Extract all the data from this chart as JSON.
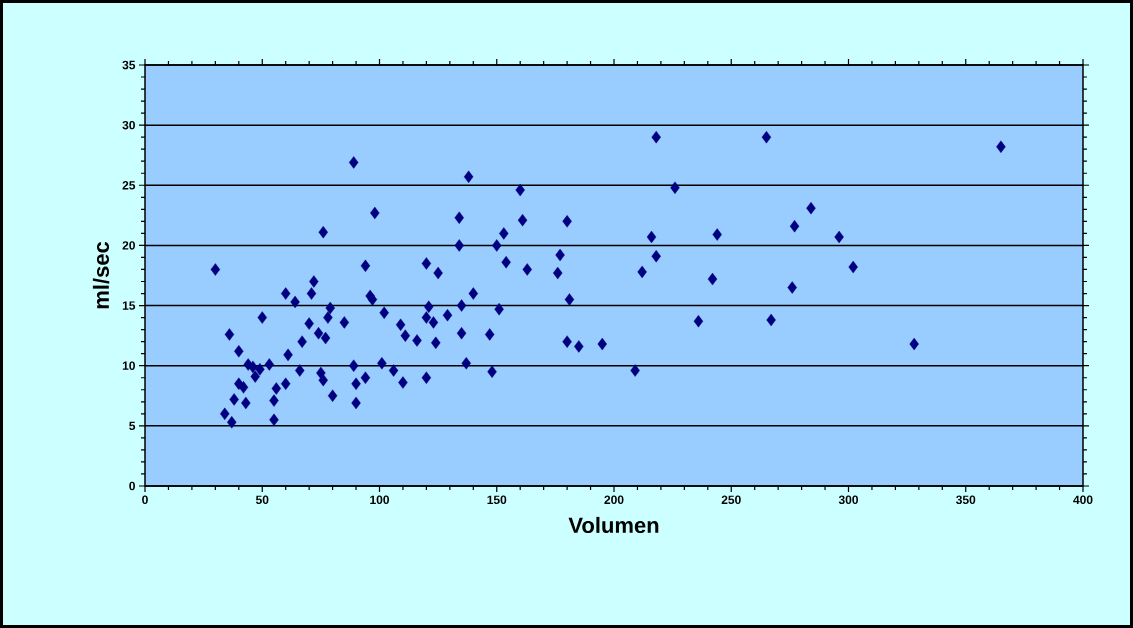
{
  "chart_data": {
    "type": "scatter",
    "xlabel": "Volumen",
    "ylabel": "ml/sec",
    "xlim": [
      0,
      400
    ],
    "xticks": [
      0,
      50,
      100,
      150,
      200,
      250,
      300,
      350,
      400
    ],
    "ylim": [
      0,
      35
    ],
    "yticks": [
      0,
      5,
      10,
      15,
      20,
      25,
      30,
      35
    ],
    "grid": "y",
    "marker": "diamond",
    "series": [
      {
        "color": "#000080",
        "x": [
          30,
          34,
          36,
          37,
          38,
          40,
          40,
          42,
          43,
          44,
          46,
          47,
          49,
          50,
          53,
          55,
          55,
          56,
          60,
          60,
          61,
          64,
          66,
          67,
          70,
          71,
          72,
          74,
          75,
          76,
          76,
          77,
          78,
          79,
          80,
          85,
          89,
          89,
          90,
          90,
          94,
          94,
          96,
          97,
          98,
          101,
          102,
          106,
          109,
          110,
          111,
          116,
          120,
          120,
          120,
          121,
          123,
          124,
          125,
          129,
          134,
          134,
          135,
          135,
          137,
          138,
          140,
          147,
          148,
          150,
          151,
          153,
          154,
          160,
          161,
          163,
          176,
          177,
          180,
          180,
          181,
          185,
          195,
          209,
          212,
          216,
          218,
          218,
          226,
          236,
          242,
          244,
          265,
          267,
          276,
          277,
          284,
          296,
          302,
          328,
          365
        ],
        "values": [
          18,
          6,
          12.6,
          5.3,
          7.2,
          11.2,
          8.5,
          8.2,
          6.9,
          10.1,
          9.9,
          9.1,
          9.7,
          14,
          10.1,
          5.5,
          7.1,
          8.1,
          16,
          8.5,
          10.9,
          15.3,
          9.6,
          12,
          13.5,
          16,
          17,
          12.7,
          9.4,
          8.8,
          21.1,
          12.3,
          14,
          14.8,
          7.5,
          13.6,
          26.9,
          10,
          8.5,
          6.9,
          18.3,
          9,
          15.8,
          15.5,
          22.7,
          10.2,
          14.4,
          9.6,
          13.4,
          8.6,
          12.5,
          12.1,
          18.5,
          14,
          9,
          14.9,
          13.6,
          11.9,
          17.7,
          14.2,
          22.3,
          20,
          12.7,
          15,
          10.2,
          25.7,
          16,
          12.6,
          9.5,
          20,
          14.7,
          21,
          18.6,
          24.6,
          22.1,
          18,
          17.7,
          19.2,
          22,
          12,
          15.5,
          11.6,
          11.8,
          9.6,
          17.8,
          20.7,
          29,
          19.1,
          24.8,
          13.7,
          17.2,
          20.9,
          29,
          13.8,
          16.5,
          21.6,
          23.1,
          20.7,
          18.2,
          11.8,
          28.2
        ]
      }
    ]
  }
}
